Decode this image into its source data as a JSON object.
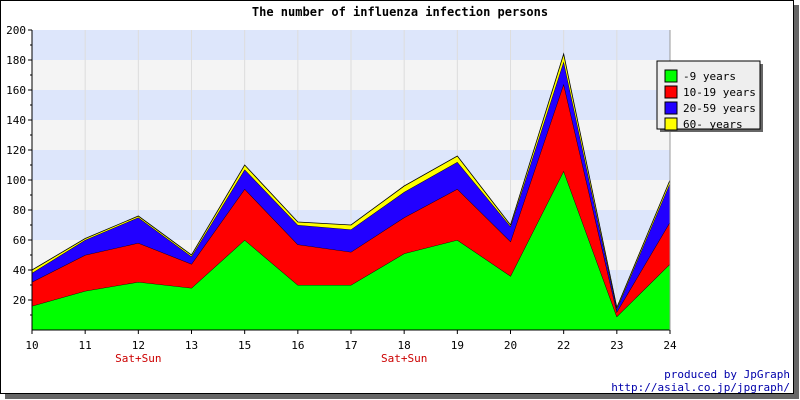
{
  "chart_data": {
    "type": "area",
    "stacked": true,
    "title": "The number of influenza infection persons",
    "categories": [
      "10",
      "11",
      "12",
      "13",
      "15",
      "16",
      "17",
      "18",
      "19",
      "20",
      "22",
      "23",
      "24"
    ],
    "sublabels": [
      "",
      "",
      "Sat+Sun",
      "",
      "",
      "",
      "",
      "Sat+Sun",
      "",
      "",
      "",
      "",
      ""
    ],
    "ylim": [
      0,
      200
    ],
    "yticks": [
      20,
      40,
      60,
      80,
      100,
      120,
      140,
      160,
      180,
      200
    ],
    "grid": true,
    "legend_position": "top-right",
    "series": [
      {
        "name": "-9 years",
        "color": "#00ff00",
        "values": [
          16,
          26,
          32,
          28,
          60,
          30,
          30,
          51,
          60,
          36,
          106,
          9,
          44
        ]
      },
      {
        "name": "10-19 years",
        "color": "#ff0000",
        "values": [
          16,
          24,
          26,
          16,
          34,
          27,
          22,
          24,
          34,
          23,
          58,
          3,
          28
        ]
      },
      {
        "name": "20-59 years",
        "color": "#2200ff",
        "values": [
          6,
          10,
          17,
          5,
          13,
          13,
          15,
          17,
          18,
          10,
          15,
          2,
          26
        ]
      },
      {
        "name": "60- years",
        "color": "#ffff00",
        "values": [
          2,
          1,
          1,
          1,
          3,
          2,
          3,
          4,
          4,
          1,
          5,
          1,
          2
        ]
      }
    ]
  },
  "credit": {
    "line1": "produced by JpGraph",
    "line2": "http://asial.co.jp/jpgraph/"
  }
}
